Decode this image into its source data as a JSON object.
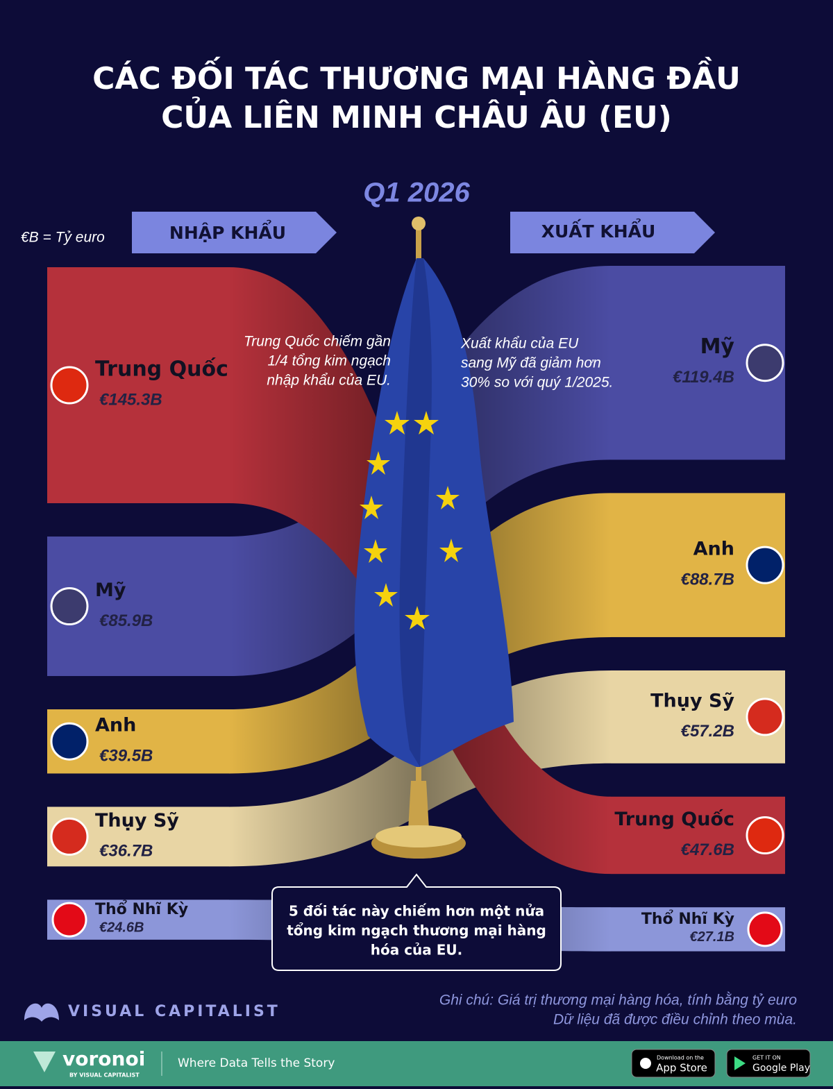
{
  "chart_data": {
    "type": "flow",
    "title": [
      "CÁC ĐỐI TÁC THƯƠNG MẠI HÀNG ĐẦU",
      "CỦA LIÊN MINH CHÂU ÂU (EU)"
    ],
    "subtitle": "Q1 2026",
    "unit_note": "€B = Tỷ euro",
    "imports": {
      "label": "NHẬP KHẨU",
      "categories": [
        "Trung Quốc",
        "Mỹ",
        "Anh",
        "Thụy Sỹ",
        "Thổ Nhĩ Kỳ"
      ],
      "values": [
        145.3,
        85.9,
        39.5,
        36.7,
        24.6
      ],
      "value_labels": [
        "€145.3B",
        "€85.9B",
        "€39.5B",
        "€36.7B",
        "€24.6B"
      ],
      "colors": [
        "#b5313b",
        "#4b4ca3",
        "#e1b446",
        "#e8d5a4",
        "#8c96d9"
      ],
      "flag_colors": [
        "#de2910",
        "#3c3b6e",
        "#012169",
        "#d52b1e",
        "#e30a17"
      ]
    },
    "exports": {
      "label": "XUẤT KHẨU",
      "categories": [
        "Mỹ",
        "Anh",
        "Thụy Sỹ",
        "Trung Quốc",
        "Thổ Nhĩ Kỳ"
      ],
      "values": [
        119.4,
        88.7,
        57.2,
        47.6,
        27.1
      ],
      "value_labels": [
        "€119.4B",
        "€88.7B",
        "€57.2B",
        "€47.6B",
        "€27.1B"
      ],
      "colors": [
        "#4b4ca3",
        "#e1b446",
        "#e8d5a4",
        "#b5313b",
        "#8c96d9"
      ],
      "flag_colors": [
        "#3c3b6e",
        "#012169",
        "#d52b1e",
        "#de2910",
        "#e30a17"
      ]
    },
    "annotations": [
      [
        "Trung Quốc chiếm gần",
        "1/4 tổng kim ngạch",
        "nhập khẩu của EU."
      ],
      [
        "Xuất khẩu của EU",
        "sang Mỹ đã giảm hơn",
        "30% so với quý 1/2025."
      ],
      [
        "5 đối tác này chiếm hơn một nửa",
        "tổng kim ngạch thương mại hàng",
        "hóa của EU."
      ]
    ],
    "notes": [
      "Ghi chú: Giá trị thương mại hàng hóa, tính bằng tỷ euro",
      "Dữ liệu đã được điều chỉnh theo mùa."
    ]
  },
  "footer": {
    "brand": "VISUAL CAPITALIST",
    "logo": "voronoi",
    "logo_sub": "BY VISUAL CAPITALIST",
    "tagline": "Where Data Tells the Story",
    "app_store": [
      "Download on the",
      "App Store"
    ],
    "google_play": [
      "GET IT ON",
      "Google Play"
    ]
  }
}
